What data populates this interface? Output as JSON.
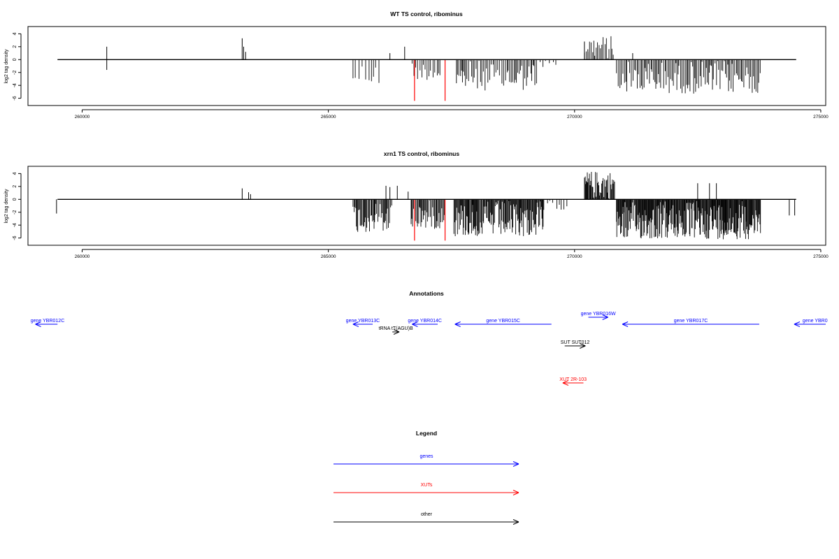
{
  "chart_data": [
    {
      "type": "bar",
      "title": "WT TS control, ribominus",
      "ylabel": "log2 tag density",
      "xlim": [
        258900,
        275100
      ],
      "ylim": [
        -6.8,
        4.8
      ],
      "xticks": [
        260000,
        265000,
        270000,
        275000
      ],
      "yticks": [
        -6,
        -4,
        -2,
        0,
        2,
        4
      ],
      "baseline": {
        "x": [
          259500,
          274500
        ],
        "y": 0
      },
      "highlights": [
        {
          "x": 266750,
          "y0": -6.4,
          "y1": 0,
          "color": "#ff0000"
        },
        {
          "x": 267370,
          "y0": -6.4,
          "y1": 0,
          "color": "#ff0000"
        }
      ],
      "single_bars": [
        {
          "x": 259500,
          "y0": 0,
          "y1": 0
        },
        {
          "x": 260500,
          "y0": -1.6,
          "y1": 2.0
        },
        {
          "x": 263250,
          "y0": 0,
          "y1": 3.3
        },
        {
          "x": 263280,
          "y0": 0,
          "y1": 2.0
        },
        {
          "x": 263320,
          "y0": 0,
          "y1": 1.2
        },
        {
          "x": 266250,
          "y0": 0,
          "y1": 1.0
        },
        {
          "x": 266550,
          "y0": 0,
          "y1": 2.0
        },
        {
          "x": 270200,
          "y0": 0,
          "y1": 2.8
        },
        {
          "x": 270270,
          "y0": 0,
          "y1": 1.6
        },
        {
          "x": 271180,
          "y0": 0,
          "y1": 1.0
        }
      ],
      "regions": [
        {
          "x0": 265500,
          "x1": 266050,
          "min": -4.0,
          "max": 0,
          "step": 55
        },
        {
          "x0": 266700,
          "x1": 267300,
          "min": -3.2,
          "max": 0,
          "step": 40
        },
        {
          "x0": 267600,
          "x1": 269250,
          "min": -4.8,
          "max": 0,
          "step": 28
        },
        {
          "x0": 269300,
          "x1": 269650,
          "min": -1.2,
          "max": 0,
          "step": 60
        },
        {
          "x0": 270200,
          "x1": 270820,
          "min": 0,
          "max": 3.7,
          "step": 30
        },
        {
          "x0": 270850,
          "x1": 273780,
          "min": -5.3,
          "max": 0,
          "step": 26
        }
      ]
    },
    {
      "type": "bar",
      "title": "xrn1 TS control, ribominus",
      "ylabel": "log2 tag density",
      "xlim": [
        258900,
        275100
      ],
      "ylim": [
        -6.8,
        4.8
      ],
      "xticks": [
        260000,
        265000,
        270000,
        275000
      ],
      "yticks": [
        -6,
        -4,
        -2,
        0,
        2,
        4
      ],
      "baseline": {
        "x": [
          259500,
          274500
        ],
        "y": 0
      },
      "highlights": [
        {
          "x": 266750,
          "y0": -6.4,
          "y1": 0,
          "color": "#ff0000"
        },
        {
          "x": 267370,
          "y0": -6.4,
          "y1": 0,
          "color": "#ff0000"
        }
      ],
      "single_bars": [
        {
          "x": 259480,
          "y0": -2.2,
          "y1": 0
        },
        {
          "x": 263250,
          "y0": 0,
          "y1": 1.7
        },
        {
          "x": 263380,
          "y0": 0,
          "y1": 1.1
        },
        {
          "x": 263420,
          "y0": 0,
          "y1": 0.8
        },
        {
          "x": 266170,
          "y0": 0,
          "y1": 2.1
        },
        {
          "x": 266250,
          "y0": 0,
          "y1": 1.9
        },
        {
          "x": 266400,
          "y0": 0,
          "y1": 2.1
        },
        {
          "x": 266620,
          "y0": 0,
          "y1": 1.2
        },
        {
          "x": 272500,
          "y0": 0,
          "y1": 2.5
        },
        {
          "x": 272740,
          "y0": 0,
          "y1": 2.5
        },
        {
          "x": 272880,
          "y0": 0,
          "y1": 2.5
        },
        {
          "x": 274360,
          "y0": -2.5,
          "y1": 0
        },
        {
          "x": 274470,
          "y0": -2.5,
          "y1": 0
        }
      ],
      "regions": [
        {
          "x0": 265500,
          "x1": 266300,
          "min": -5.2,
          "max": 0,
          "step": 18
        },
        {
          "x0": 266680,
          "x1": 267380,
          "min": -4.6,
          "max": 0,
          "step": 18
        },
        {
          "x0": 267550,
          "x1": 269380,
          "min": -5.8,
          "max": 0,
          "step": 14
        },
        {
          "x0": 269450,
          "x1": 269900,
          "min": -1.6,
          "max": 0,
          "step": 45
        },
        {
          "x0": 270200,
          "x1": 270820,
          "min": 0,
          "max": 4.4,
          "step": 14
        },
        {
          "x0": 270850,
          "x1": 273780,
          "min": -6.2,
          "max": 0,
          "step": 12
        }
      ]
    }
  ],
  "annotations": {
    "title": "Annotations",
    "features": [
      {
        "label": "gene YBR012C",
        "color": "#0000ff",
        "from": 259500,
        "to": 259050,
        "row": 0
      },
      {
        "label": "gene YBR013C",
        "color": "#0000ff",
        "from": 265900,
        "to": 265500,
        "row": 0
      },
      {
        "label": "gene YBR014C",
        "color": "#0000ff",
        "from": 267220,
        "to": 266700,
        "row": 0
      },
      {
        "label": "gene YBR015C",
        "color": "#0000ff",
        "from": 269530,
        "to": 267570,
        "row": 0
      },
      {
        "label": "gene YBR016W",
        "color": "#0000ff",
        "from": 270280,
        "to": 270680,
        "row": -1
      },
      {
        "label": "gene YBR017C",
        "color": "#0000ff",
        "from": 273750,
        "to": 270970,
        "row": 0
      },
      {
        "label": "gene YBR0",
        "color": "#0000ff",
        "from": 275100,
        "to": 274460,
        "row": 0
      },
      {
        "label": "tRNA tT(AGU)B",
        "color": "#000000",
        "from": 266300,
        "to": 266440,
        "row": 1
      },
      {
        "label": "SUT SUT012",
        "color": "#000000",
        "from": 269800,
        "to": 270220,
        "row": 2
      },
      {
        "label": "XUT 2R-103",
        "color": "#ff0000",
        "from": 270180,
        "to": 269760,
        "row": 3
      }
    ]
  },
  "legend": {
    "title": "Legend",
    "entries": [
      {
        "label": "genes",
        "color": "#0000ff"
      },
      {
        "label": "XUTs",
        "color": "#ff0000"
      },
      {
        "label": "other",
        "color": "#000000"
      }
    ]
  }
}
